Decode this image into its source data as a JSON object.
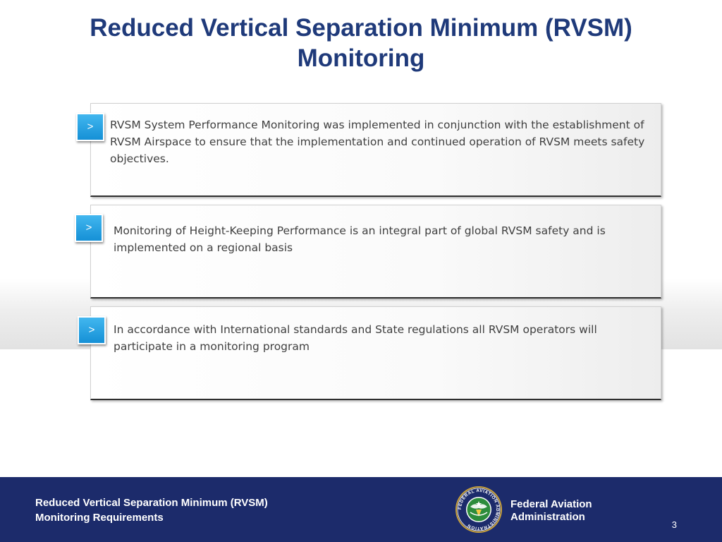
{
  "slide": {
    "title_line1": "Reduced Vertical Separation Minimum (RVSM)",
    "title_line2": "Monitoring",
    "colors": {
      "title": "#1f3a7a",
      "badge": "#1e9be0",
      "footer": "#1c2b6b",
      "body_text": "#404040"
    },
    "points": [
      {
        "marker": ">",
        "marker_icon": "chevron-right-icon",
        "text": "RVSM System Performance Monitoring was implemented in conjunction with the establishment of RVSM Airspace to ensure that the implementation and continued operation of RVSM meets safety objectives."
      },
      {
        "marker": ">",
        "marker_icon": "chevron-right-icon",
        "text": "Monitoring of Height-Keeping Performance is an integral part of global RVSM safety and is implemented on a regional basis"
      },
      {
        "marker": ">",
        "marker_icon": "chevron-right-icon",
        "text": "In accordance with International standards and State regulations all RVSM operators will participate in a monitoring program"
      }
    ]
  },
  "footer": {
    "title_line1": "Reduced Vertical Separation Minimum (RVSM)",
    "title_line2": "Monitoring Requirements",
    "seal_text": "FEDERAL AVIATION ADMINISTRATION",
    "seal_icon": "faa-seal-icon",
    "agency_line1": "Federal Aviation",
    "agency_line2": "Administration",
    "page_number": "3"
  }
}
